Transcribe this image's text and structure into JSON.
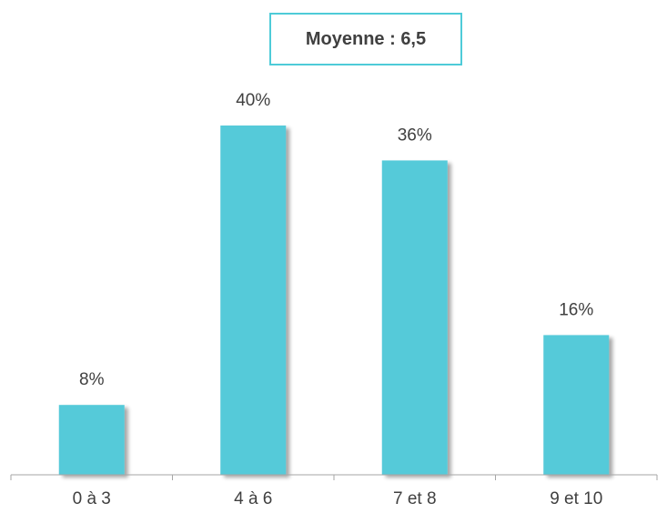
{
  "mean_label": "Moyenne : 6,5",
  "chart_data": {
    "type": "bar",
    "categories": [
      "0 à 3",
      "4 à 6",
      "7 et 8",
      "9 et 10"
    ],
    "values": [
      8,
      40,
      36,
      16
    ],
    "value_labels": [
      "8%",
      "40%",
      "36%",
      "16%"
    ],
    "title": "",
    "xlabel": "",
    "ylabel": "",
    "ylim": [
      0,
      40
    ],
    "grid": false,
    "legend": "none",
    "bar_color": "#54cad9",
    "shadow_color": "#b9b9b9",
    "axis_color": "#a6a6a6",
    "text_color": "#404040"
  }
}
